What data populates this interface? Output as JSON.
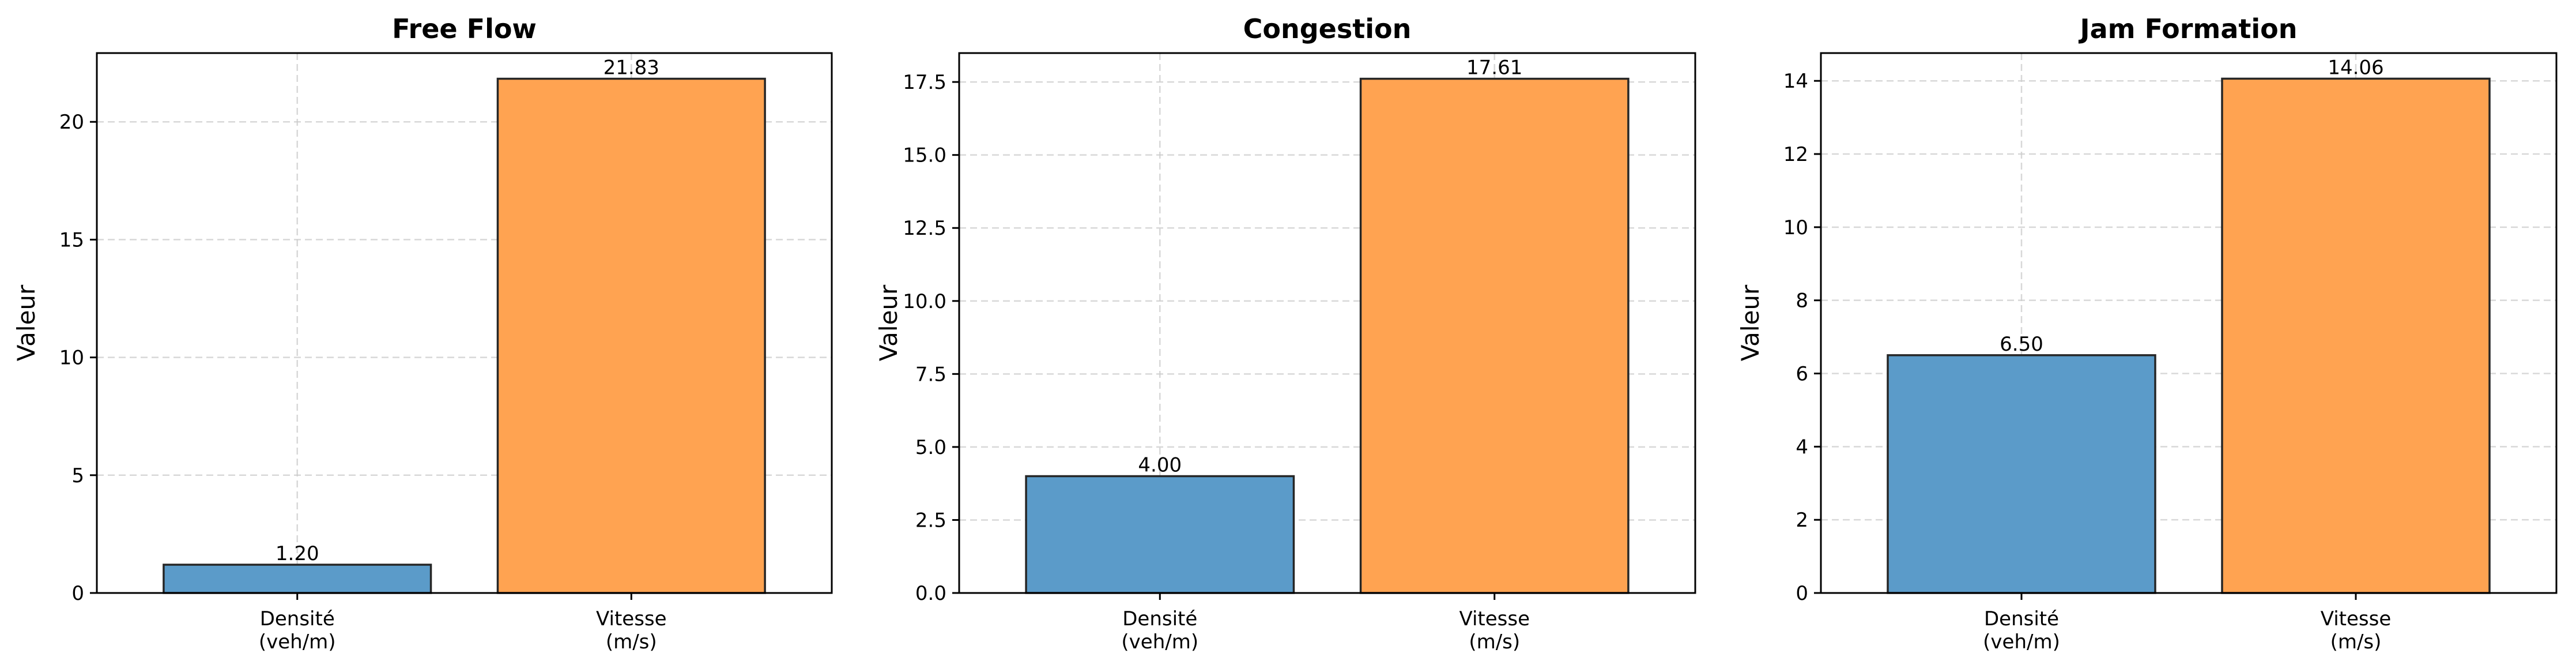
{
  "colors": {
    "bar1": "#5b9bc9",
    "bar2": "#ffa351",
    "edge": "#262626",
    "grid": "#cccccc",
    "axis": "#000000"
  },
  "chart_data": [
    {
      "type": "bar",
      "title": "Free Flow",
      "xlabel": "",
      "ylabel": "Valeur",
      "categories": [
        "Densité\n(veh/m)",
        "Vitesse\n(m/s)"
      ],
      "values": [
        1.2,
        21.83
      ],
      "value_labels": [
        "1.20",
        "21.83"
      ],
      "ylim": [
        0,
        22.92
      ],
      "yticks": [
        0,
        5,
        10,
        15,
        20
      ],
      "ytick_labels": [
        "0",
        "5",
        "10",
        "15",
        "20"
      ],
      "grid": true,
      "legend": "none"
    },
    {
      "type": "bar",
      "title": "Congestion",
      "xlabel": "",
      "ylabel": "Valeur",
      "categories": [
        "Densité\n(veh/m)",
        "Vitesse\n(m/s)"
      ],
      "values": [
        4.0,
        17.61
      ],
      "value_labels": [
        "4.00",
        "17.61"
      ],
      "ylim": [
        0,
        18.49
      ],
      "yticks": [
        0,
        2.5,
        5,
        7.5,
        10,
        12.5,
        15,
        17.5
      ],
      "ytick_labels": [
        "0.0",
        "2.5",
        "5.0",
        "7.5",
        "10.0",
        "12.5",
        "15.0",
        "17.5"
      ],
      "grid": true,
      "legend": "none"
    },
    {
      "type": "bar",
      "title": "Jam Formation",
      "xlabel": "",
      "ylabel": "Valeur",
      "categories": [
        "Densité\n(veh/m)",
        "Vitesse\n(m/s)"
      ],
      "values": [
        6.5,
        14.06
      ],
      "value_labels": [
        "6.50",
        "14.06"
      ],
      "ylim": [
        0,
        14.76
      ],
      "yticks": [
        0,
        2,
        4,
        6,
        8,
        10,
        12,
        14
      ],
      "ytick_labels": [
        "0",
        "2",
        "4",
        "6",
        "8",
        "10",
        "12",
        "14"
      ],
      "grid": true,
      "legend": "none"
    }
  ]
}
